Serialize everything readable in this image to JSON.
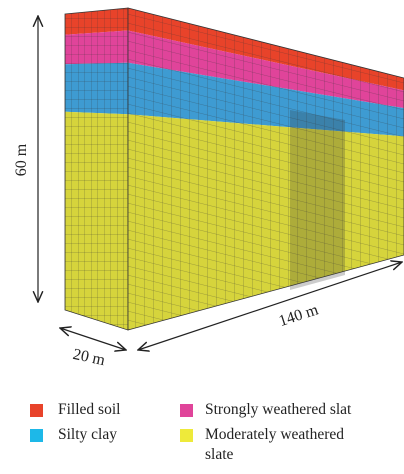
{
  "dimensions": {
    "height": "60 m",
    "length": "140 m",
    "width": "20 m"
  },
  "legend": [
    {
      "label": "Filled soil"
    },
    {
      "label": "Strongly weathered slat"
    },
    {
      "label": "Silty clay"
    },
    {
      "label": "Moderately weathered slate"
    }
  ]
}
